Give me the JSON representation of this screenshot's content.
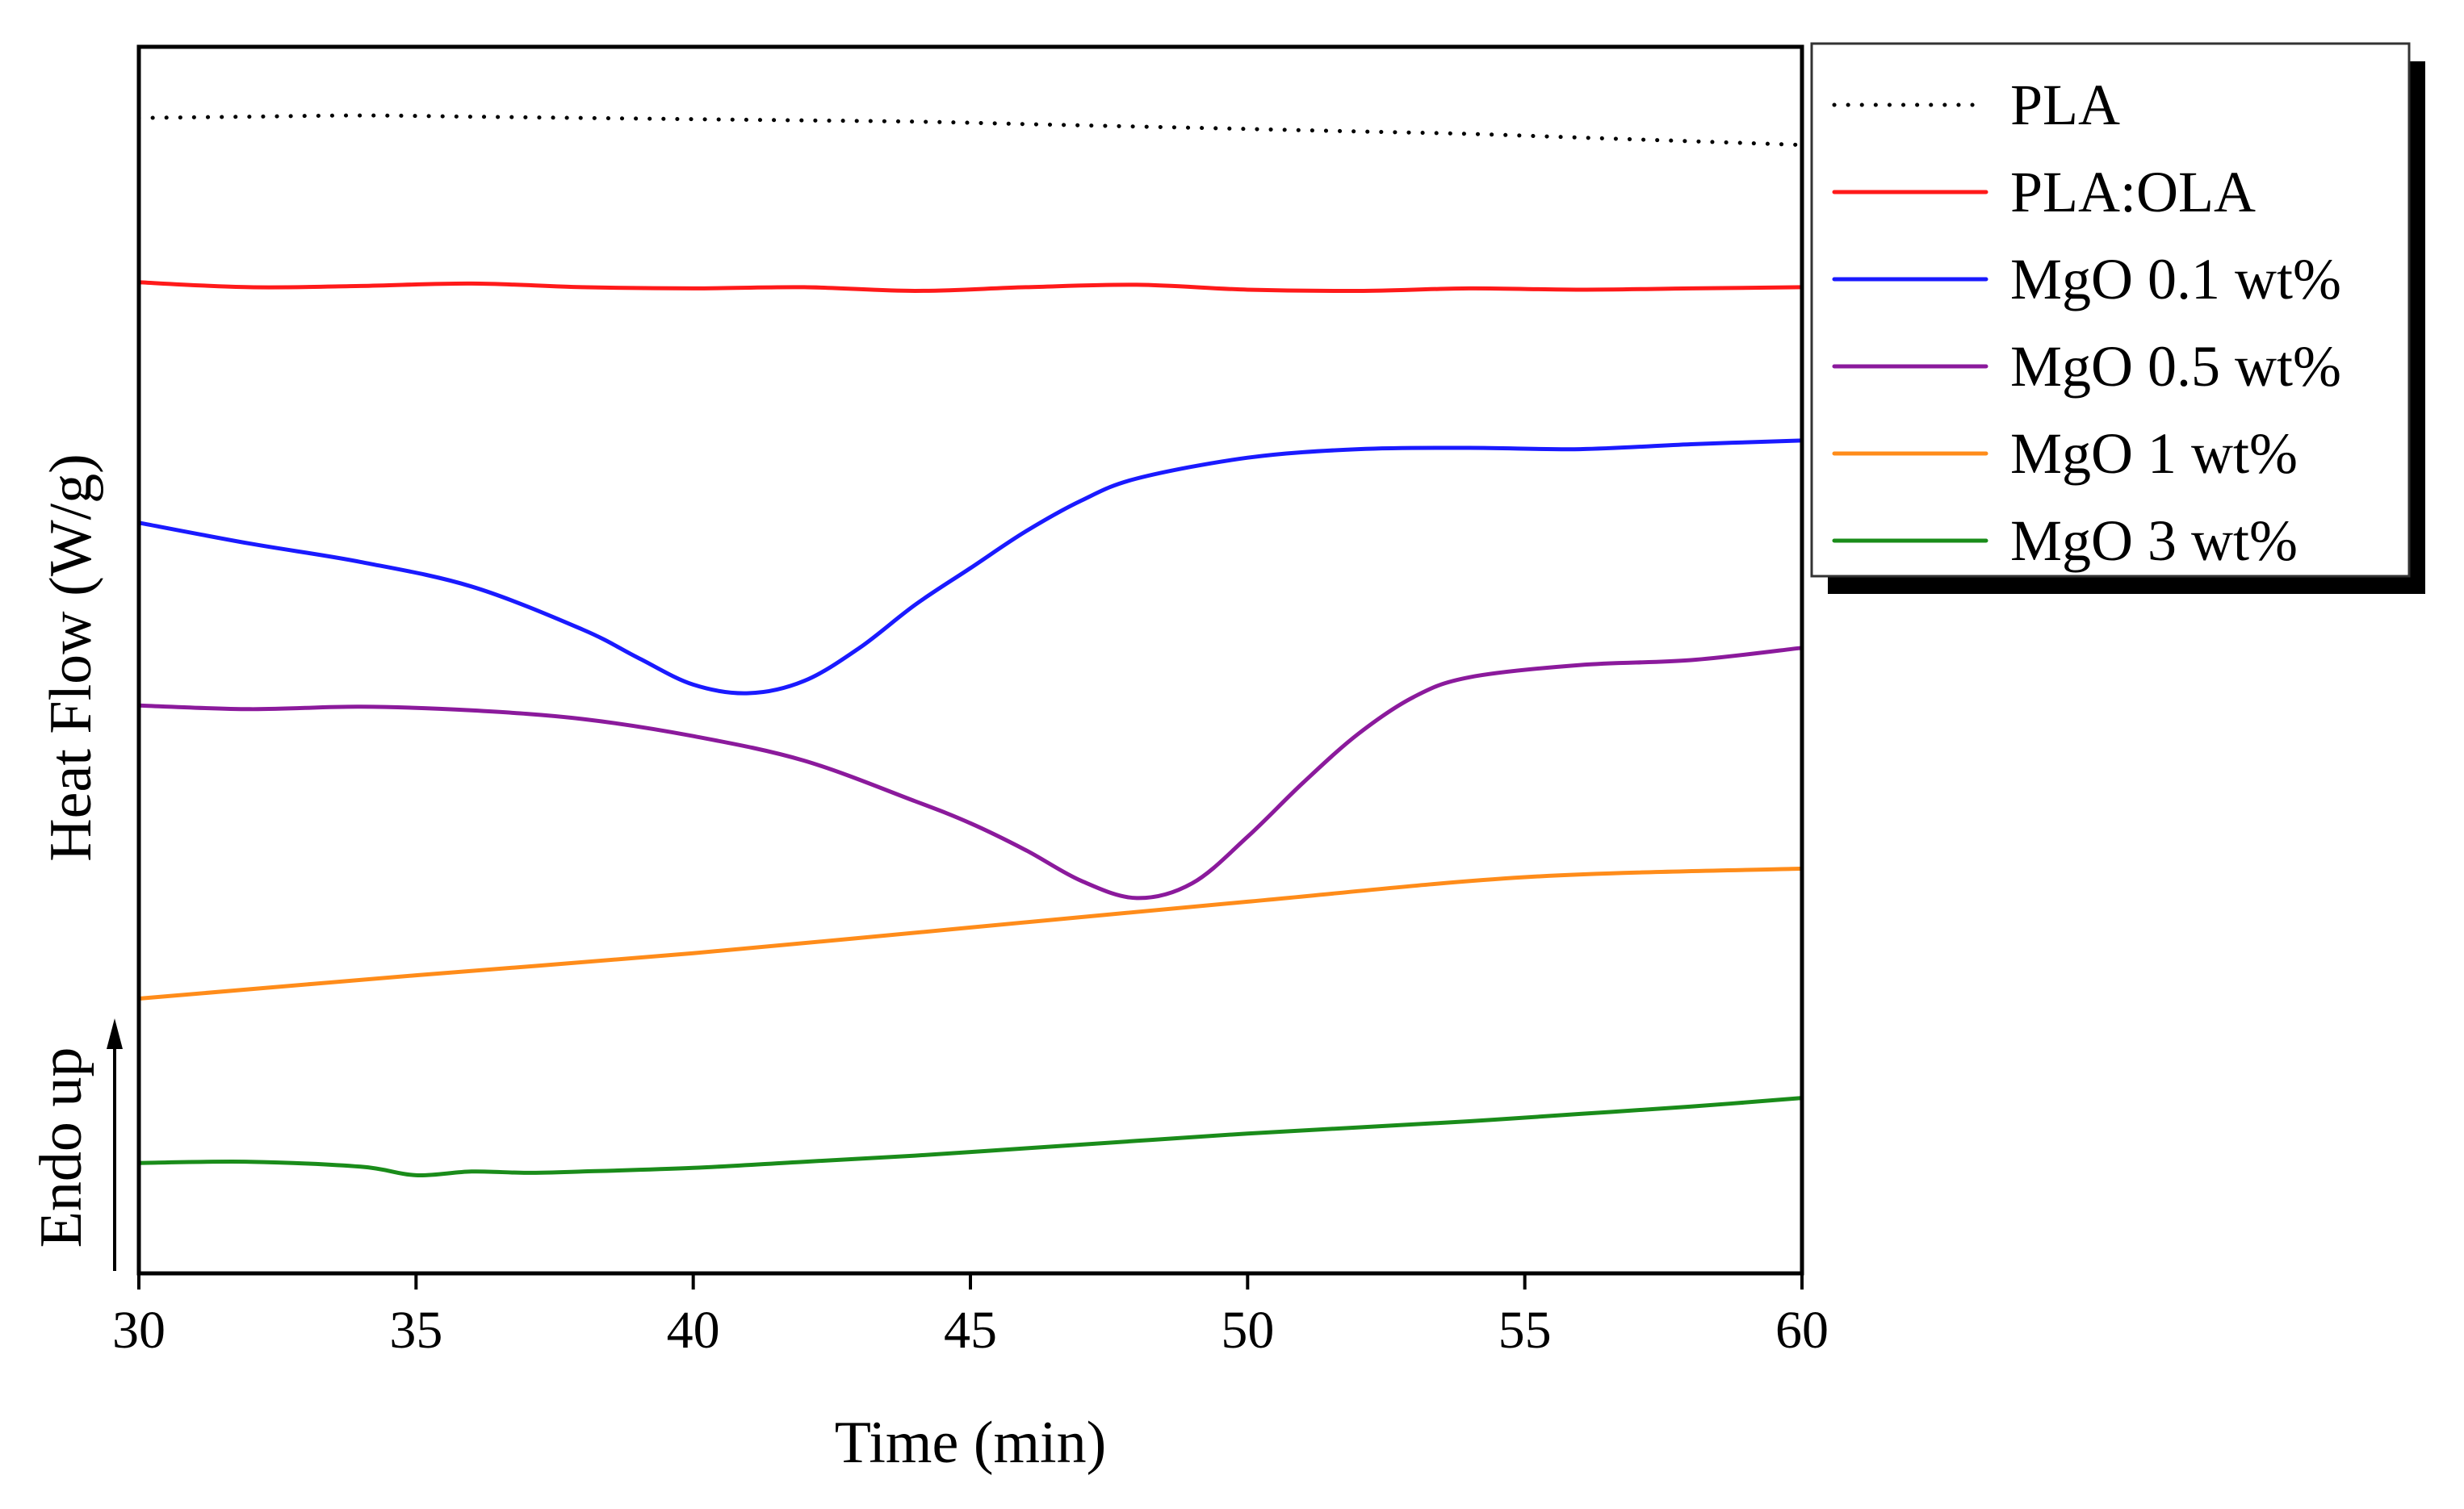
{
  "chart_data": {
    "type": "line",
    "title": "",
    "xlabel": "Time (min)",
    "ylabel": "Heat Flow (W/g)",
    "annotation": "Endo up",
    "xlim": [
      30,
      60
    ],
    "ylim": [
      0,
      100
    ],
    "x_ticks": [
      "30",
      "35",
      "40",
      "45",
      "50",
      "55",
      "60"
    ],
    "y_ticks_shown": false,
    "grid": false,
    "legend_position": "top-right outside plot",
    "series": [
      {
        "name": "PLA",
        "color": "#000000",
        "style": "dotted",
        "x": [
          30,
          32,
          34,
          36,
          38,
          40,
          42,
          44,
          46,
          48,
          50,
          52,
          54,
          56,
          58,
          60
        ],
        "y": [
          94.2,
          94.3,
          94.4,
          94.3,
          94.2,
          94.1,
          94.0,
          93.9,
          93.7,
          93.5,
          93.3,
          93.1,
          92.9,
          92.6,
          92.3,
          92.0
        ]
      },
      {
        "name": "PLA:OLA",
        "color": "#ff1a1a",
        "style": "solid",
        "x": [
          30,
          32,
          34,
          36,
          38,
          40,
          42,
          44,
          46,
          48,
          50,
          52,
          54,
          56,
          58,
          60
        ],
        "y": [
          80.8,
          80.4,
          80.5,
          80.7,
          80.4,
          80.3,
          80.4,
          80.1,
          80.4,
          80.6,
          80.2,
          80.1,
          80.3,
          80.2,
          80.3,
          80.4
        ]
      },
      {
        "name": "MgO 0.1 wt%",
        "color": "#1a1aff",
        "style": "solid",
        "x": [
          30,
          32,
          34,
          36,
          38,
          39,
          40,
          41,
          42,
          43,
          44,
          45,
          46,
          47,
          48,
          50,
          52,
          54,
          56,
          58,
          60
        ],
        "y": [
          61.2,
          59.5,
          58.0,
          56.0,
          52.5,
          50.2,
          48.0,
          47.3,
          48.3,
          51.0,
          54.5,
          57.5,
          60.5,
          63.0,
          64.8,
          66.5,
          67.2,
          67.3,
          67.2,
          67.6,
          67.9
        ]
      },
      {
        "name": "MgO 0.5 wt%",
        "color": "#8b1a9c",
        "style": "solid",
        "x": [
          30,
          32,
          34,
          36,
          38,
          40,
          42,
          44,
          45,
          46,
          47,
          48,
          49,
          50,
          51,
          52,
          53,
          54,
          56,
          58,
          60
        ],
        "y": [
          46.3,
          46.0,
          46.2,
          45.9,
          45.2,
          43.8,
          41.8,
          38.5,
          36.7,
          34.5,
          32.0,
          30.6,
          31.8,
          35.6,
          40.0,
          44.0,
          47.0,
          48.6,
          49.6,
          50.0,
          51.0
        ]
      },
      {
        "name": "MgO 1 wt%",
        "color": "#ff8c1a",
        "style": "solid",
        "x": [
          30,
          35,
          40,
          45,
          50,
          55,
          60
        ],
        "y": [
          22.4,
          24.3,
          26.1,
          28.2,
          30.3,
          32.3,
          33.0
        ]
      },
      {
        "name": "MgO 3 wt%",
        "color": "#1a8c1a",
        "style": "solid",
        "x": [
          30,
          32,
          34,
          35,
          36,
          37,
          38,
          40,
          42,
          44,
          46,
          48,
          50,
          52,
          54,
          56,
          58,
          60
        ],
        "y": [
          9.0,
          9.1,
          8.7,
          8.0,
          8.3,
          8.2,
          8.3,
          8.6,
          9.1,
          9.6,
          10.2,
          10.8,
          11.4,
          11.9,
          12.4,
          13.0,
          13.6,
          14.3
        ]
      }
    ]
  }
}
